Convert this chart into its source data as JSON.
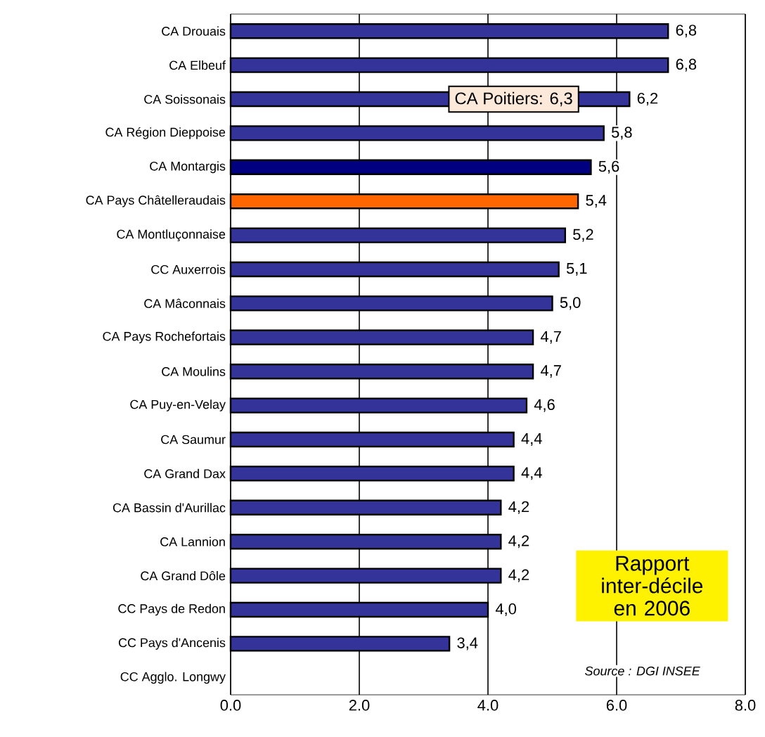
{
  "chart_data": {
    "type": "bar",
    "orientation": "horizontal",
    "categories": [
      "CA Drouais",
      "CA Elbeuf",
      "CA Soissonais",
      "CA Région Dieppoise",
      "CA Montargis",
      "CA Pays Châtelleraudais",
      "CA Montluçonnaise",
      "CC Auxerrois",
      "CA Mâconnais",
      "CA Pays Rochefortais",
      "CA Moulins",
      "CA Puy-en-Velay",
      "CA Saumur",
      "CA Grand Dax",
      "CA Bassin d'Aurillac",
      "CA Lannion",
      "CA Grand Dôle",
      "CC Pays de Redon",
      "CC Pays d'Ancenis",
      "CC Agglo. Longwy"
    ],
    "values": [
      6.8,
      6.8,
      6.2,
      5.8,
      5.6,
      5.4,
      5.2,
      5.1,
      5.0,
      4.7,
      4.7,
      4.6,
      4.4,
      4.4,
      4.2,
      4.2,
      4.2,
      4.0,
      3.4,
      null
    ],
    "value_labels": [
      "6,8",
      "6,8",
      "6,2",
      "5,8",
      "5,6",
      "5,4",
      "5,2",
      "5,1",
      "5,0",
      "4,7",
      "4,7",
      "4,6",
      "4,4",
      "4,4",
      "4,2",
      "4,2",
      "4,2",
      "4,0",
      "3,4",
      null
    ],
    "colors": [
      "#333399",
      "#333399",
      "#333399",
      "#333399",
      "#000080",
      "#ff6600",
      "#333399",
      "#333399",
      "#333399",
      "#333399",
      "#333399",
      "#333399",
      "#333399",
      "#333399",
      "#333399",
      "#333399",
      "#333399",
      "#333399",
      "#333399",
      "#333399"
    ],
    "xlim": [
      0,
      8
    ],
    "xticks": [
      {
        "value": 0,
        "label": "0.0"
      },
      {
        "value": 2,
        "label": "2.0"
      },
      {
        "value": 4,
        "label": "4.0"
      },
      {
        "value": 6,
        "label": "6.0"
      },
      {
        "value": 8,
        "label": "8.0"
      }
    ],
    "grid": "x",
    "annotations": [
      "CA Poitiers: 6,3",
      "Rapport inter-décile en 2006",
      "Source : DGI INSEE"
    ]
  }
}
